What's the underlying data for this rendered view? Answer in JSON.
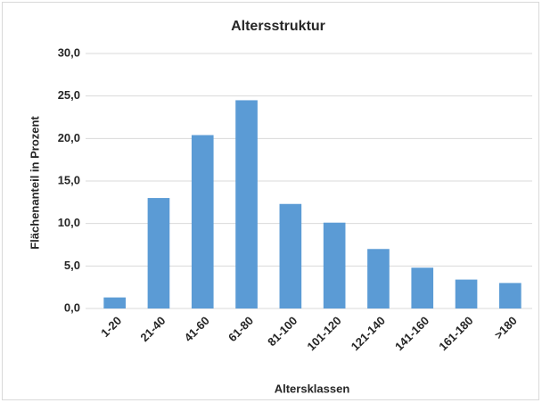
{
  "chart_data": {
    "type": "bar",
    "title": "Altersstruktur",
    "x_label": "Altersklassen",
    "y_label": "Flächenanteil in Prozent",
    "categories": [
      "1-20",
      "21-40",
      "41-60",
      "61-80",
      "81-100",
      "101-120",
      "121-140",
      "141-160",
      "161-180",
      ">180"
    ],
    "values": [
      1.3,
      13.0,
      20.4,
      24.5,
      12.3,
      10.1,
      7.0,
      4.8,
      3.4,
      3.0
    ],
    "color": "#5b9bd5",
    "ylim": [
      0,
      30
    ],
    "yticks": [
      {
        "value": 0,
        "label": "0,0"
      },
      {
        "value": 5,
        "label": "5,0"
      },
      {
        "value": 10,
        "label": "10,0"
      },
      {
        "value": 15,
        "label": "15,0"
      },
      {
        "value": 20,
        "label": "20,0"
      },
      {
        "value": 25,
        "label": "25,0"
      },
      {
        "value": 30,
        "label": "30,0"
      }
    ],
    "grid": true
  }
}
